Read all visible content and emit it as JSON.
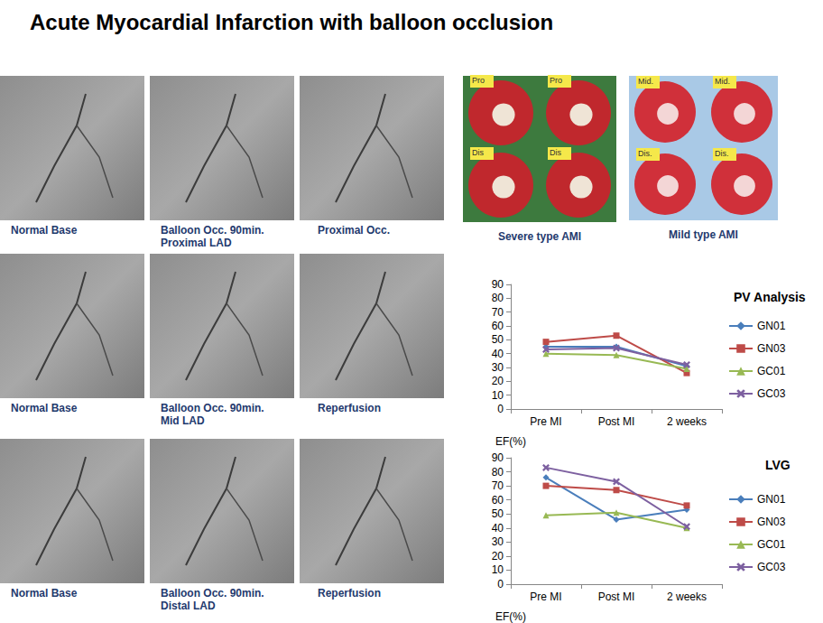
{
  "title": "Acute Myocardial Infarction with balloon occlusion",
  "angiography": [
    [
      [
        "Normal Base"
      ],
      [
        "Balloon Occ. 90min.",
        "Proximal LAD"
      ],
      [
        "Proximal Occ."
      ]
    ],
    [
      [
        "Normal Base"
      ],
      [
        "Balloon Occ. 90min.",
        "Mid LAD"
      ],
      [
        "Reperfusion"
      ]
    ],
    [
      [
        "Normal Base"
      ],
      [
        "Balloon Occ. 90min.",
        "Distal LAD"
      ],
      [
        "Reperfusion"
      ]
    ]
  ],
  "photos": [
    {
      "caption": "Severe type AMI",
      "labels": [
        "Pro",
        "Pro",
        "Dis",
        "Dis"
      ]
    },
    {
      "caption": "Mild type AMI",
      "labels": [
        "Mid.",
        "Mid.",
        "Dis.",
        "Dis."
      ]
    }
  ],
  "chart_data": [
    {
      "type": "line",
      "title": "PV Analysis",
      "y_label": "EF(%)",
      "categories": [
        "Pre MI",
        "Post MI",
        "2 weeks"
      ],
      "series": [
        {
          "name": "GN01",
          "color": "#4a7ebb",
          "marker": "diamond",
          "values": [
            45,
            45,
            31
          ]
        },
        {
          "name": "GN03",
          "color": "#be4b48",
          "marker": "square",
          "values": [
            48.5,
            53,
            26
          ]
        },
        {
          "name": "GC01",
          "color": "#98b954",
          "marker": "triangle",
          "values": [
            40,
            39,
            29
          ]
        },
        {
          "name": "GC03",
          "color": "#7d60a0",
          "marker": "x",
          "values": [
            43,
            44,
            32
          ]
        }
      ],
      "ylim": [
        0,
        90
      ],
      "yticks": [
        0,
        10,
        20,
        30,
        40,
        50,
        60,
        70,
        80,
        90
      ],
      "grid": false,
      "legend": "right"
    },
    {
      "type": "line",
      "title": "LVG",
      "y_label": "EF(%)",
      "categories": [
        "Pre MI",
        "Post MI",
        "2 weeks"
      ],
      "series": [
        {
          "name": "GN01",
          "color": "#4a7ebb",
          "marker": "diamond",
          "values": [
            76,
            46,
            53
          ]
        },
        {
          "name": "GN03",
          "color": "#be4b48",
          "marker": "square",
          "values": [
            70,
            67,
            56
          ]
        },
        {
          "name": "GC01",
          "color": "#98b954",
          "marker": "triangle",
          "values": [
            49,
            51,
            40
          ]
        },
        {
          "name": "GC03",
          "color": "#7d60a0",
          "marker": "x",
          "values": [
            83,
            73,
            41
          ]
        }
      ],
      "ylim": [
        0,
        90
      ],
      "yticks": [
        0,
        10,
        20,
        30,
        40,
        50,
        60,
        70,
        80,
        90
      ],
      "grid": false,
      "legend": "right"
    }
  ]
}
